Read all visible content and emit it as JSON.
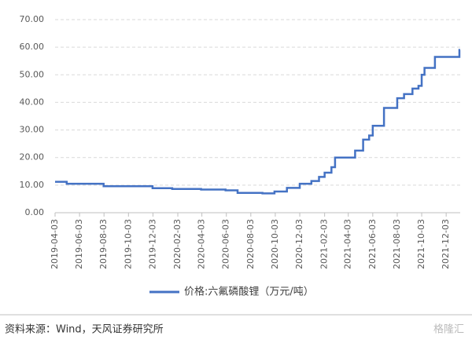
{
  "chart_data": {
    "type": "line",
    "step": "post",
    "x": [
      "2019-04-03",
      "2019-05-02",
      "2019-08-02",
      "2019-12-02",
      "2020-01-20",
      "2020-04-01",
      "2020-06-01",
      "2020-07-01",
      "2020-09-01",
      "2020-10-01",
      "2020-11-01",
      "2020-12-03",
      "2021-01-01",
      "2021-01-20",
      "2021-02-03",
      "2021-02-20",
      "2021-03-01",
      "2021-04-20",
      "2021-05-10",
      "2021-05-25",
      "2021-06-03",
      "2021-07-01",
      "2021-08-03",
      "2021-08-20",
      "2021-09-10",
      "2021-09-25",
      "2021-10-03",
      "2021-10-10",
      "2021-11-05",
      "2022-01-05"
    ],
    "series": [
      {
        "name": "价格:六氟磷酸锂（万元/吨）",
        "color": "#4472c4",
        "values": [
          11.2,
          10.5,
          9.6,
          8.9,
          8.6,
          8.4,
          8.1,
          7.2,
          7.0,
          7.7,
          9.0,
          10.5,
          11.5,
          13.0,
          14.5,
          16.5,
          20.0,
          22.5,
          26.5,
          28.0,
          31.5,
          38.0,
          41.5,
          43.0,
          45.0,
          46.0,
          50.0,
          52.5,
          56.5,
          59.0
        ]
      }
    ],
    "xlim": [
      "2019-04-03",
      "2022-01-07"
    ],
    "xticks": [
      "2019-04-03",
      "2019-06-03",
      "2019-08-03",
      "2019-10-03",
      "2019-12-03",
      "2020-02-03",
      "2020-04-03",
      "2020-06-03",
      "2020-08-03",
      "2020-10-03",
      "2020-12-03",
      "2021-02-03",
      "2021-04-03",
      "2021-06-03",
      "2021-08-03",
      "2021-10-03",
      "2021-12-03"
    ],
    "ylim": [
      0,
      70
    ],
    "yticks": [
      {
        "value": 0,
        "label": "0.00"
      },
      {
        "value": 10,
        "label": "10.00"
      },
      {
        "value": 20,
        "label": "20.00"
      },
      {
        "value": 30,
        "label": "30.00"
      },
      {
        "value": 40,
        "label": "40.00"
      },
      {
        "value": 50,
        "label": "50.00"
      },
      {
        "value": 60,
        "label": "60.00"
      },
      {
        "value": 70,
        "label": "70.00"
      }
    ],
    "grid": true,
    "source": "资料来源：Wind，天风证券研究所",
    "watermark": "格隆汇"
  }
}
